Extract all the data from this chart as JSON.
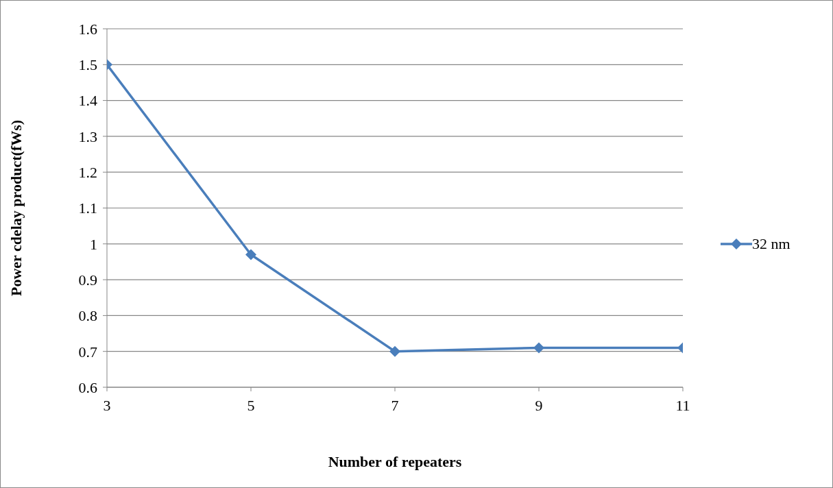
{
  "chart_data": {
    "type": "line",
    "xlabel": "Number of repeaters",
    "ylabel": "Power cdelay product(fWs)",
    "categories": [
      "3",
      "5",
      "7",
      "9",
      "11"
    ],
    "series": [
      {
        "name": "32 nm",
        "color": "#4a7ebb",
        "values": [
          1.5,
          0.97,
          0.7,
          0.71,
          0.71
        ]
      }
    ],
    "ylim": [
      0.6,
      1.6
    ],
    "yticks": [
      {
        "value": 0.6,
        "label": "0.6"
      },
      {
        "value": 0.7,
        "label": "0.7"
      },
      {
        "value": 0.8,
        "label": "0.8"
      },
      {
        "value": 0.9,
        "label": "0.9"
      },
      1,
      {
        "value": 1.1,
        "label": "1.1"
      },
      {
        "value": 1.2,
        "label": "1.2"
      },
      {
        "value": 1.3,
        "label": "1.3"
      },
      {
        "value": 1.4,
        "label": "1.4"
      },
      {
        "value": 1.5,
        "label": "1.5"
      },
      {
        "value": 1.6,
        "label": "1.6"
      }
    ],
    "grid": "y",
    "legend": "right",
    "marker": "diamond",
    "line_style": "solid"
  }
}
